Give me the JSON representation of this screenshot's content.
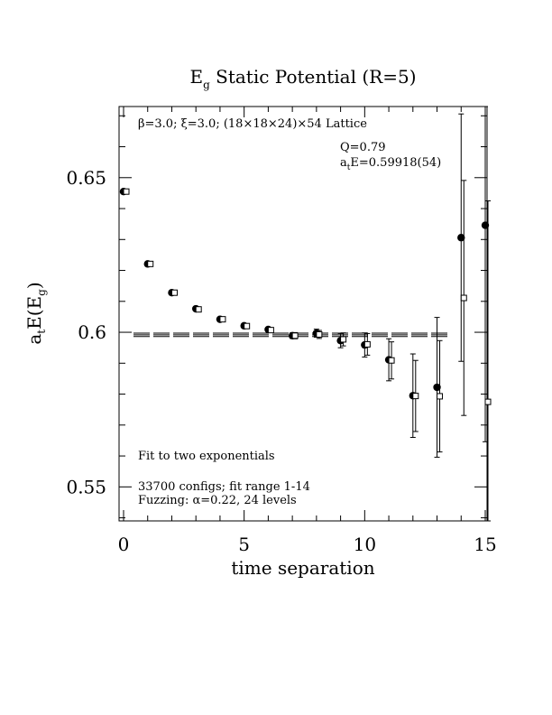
{
  "chart_data": {
    "type": "scatter",
    "title_main": "E",
    "title_sub": "g",
    "title_rest": " Static Potential (R=5)",
    "xlabel": "time separation",
    "ylabel_pre": "a",
    "ylabel_t": "t",
    "ylabel_mid": "E(E",
    "ylabel_g": "g",
    "ylabel_post": ")",
    "xlim": [
      0,
      15
    ],
    "ylim": [
      0.539,
      0.673
    ],
    "x_ticks": [
      {
        "v": 0,
        "label": "0"
      },
      {
        "v": 5,
        "label": "5"
      },
      {
        "v": 10,
        "label": "10"
      },
      {
        "v": 15,
        "label": "15"
      }
    ],
    "y_ticks": [
      {
        "v": 0.55,
        "label": "0.55"
      },
      {
        "v": 0.6,
        "label": "0.6"
      },
      {
        "v": 0.65,
        "label": "0.65"
      }
    ],
    "lattice_text": "β=3.0; ξ=3.0; (18×18×24)×54 Lattice",
    "q_text": "Q=0.79",
    "energy_pre": "a",
    "energy_sub": "t",
    "energy_rest": "E=0.59918(54)",
    "fit_text": "Fit to two exponentials",
    "configs_text": "33700 configs; fit range 1-14",
    "fuzzing_text": "Fuzzing: α=0.22, 24 levels",
    "fit_value": 0.59918,
    "fit_error": 0.00054,
    "fit_x_range": [
      0,
      13.5
    ],
    "series": [
      {
        "marker": "filled-circle",
        "points": [
          {
            "x": 0,
            "y": 0.6455,
            "err": 0.0003
          },
          {
            "x": 1,
            "y": 0.6221,
            "err": 0.0003
          },
          {
            "x": 2,
            "y": 0.6128,
            "err": 0.0004
          },
          {
            "x": 3,
            "y": 0.6076,
            "err": 0.0004
          },
          {
            "x": 4,
            "y": 0.6042,
            "err": 0.0005
          },
          {
            "x": 5,
            "y": 0.6021,
            "err": 0.0006
          },
          {
            "x": 6,
            "y": 0.6009,
            "err": 0.0007
          },
          {
            "x": 7,
            "y": 0.5989,
            "err": 0.0009
          },
          {
            "x": 8,
            "y": 0.5997,
            "err": 0.0013
          },
          {
            "x": 9,
            "y": 0.5973,
            "err": 0.0023
          },
          {
            "x": 10,
            "y": 0.5959,
            "err": 0.0039
          },
          {
            "x": 11,
            "y": 0.5911,
            "err": 0.0068
          },
          {
            "x": 12,
            "y": 0.5795,
            "err": 0.0135
          },
          {
            "x": 13,
            "y": 0.5822,
            "err": 0.0226
          },
          {
            "x": 14,
            "y": 0.6306,
            "err": 0.04
          },
          {
            "x": 15,
            "y": 0.6346,
            "err": 0.07
          }
        ]
      },
      {
        "marker": "open-square",
        "points": [
          {
            "x": 0,
            "y": 0.6455,
            "err": 0.0003
          },
          {
            "x": 1,
            "y": 0.6221,
            "err": 0.0003
          },
          {
            "x": 2,
            "y": 0.6128,
            "err": 0.0003
          },
          {
            "x": 3,
            "y": 0.6074,
            "err": 0.0004
          },
          {
            "x": 4,
            "y": 0.6042,
            "err": 0.0005
          },
          {
            "x": 5,
            "y": 0.602,
            "err": 0.0006
          },
          {
            "x": 6,
            "y": 0.6007,
            "err": 0.0007
          },
          {
            "x": 7,
            "y": 0.5989,
            "err": 0.001
          },
          {
            "x": 8,
            "y": 0.5993,
            "err": 0.0013
          },
          {
            "x": 9,
            "y": 0.5977,
            "err": 0.0021
          },
          {
            "x": 10,
            "y": 0.5961,
            "err": 0.0035
          },
          {
            "x": 11,
            "y": 0.5909,
            "err": 0.006
          },
          {
            "x": 12,
            "y": 0.5794,
            "err": 0.0115
          },
          {
            "x": 13,
            "y": 0.5793,
            "err": 0.018
          },
          {
            "x": 14,
            "y": 0.6111,
            "err": 0.038
          },
          {
            "x": 15,
            "y": 0.5775,
            "err": 0.065
          }
        ]
      }
    ]
  }
}
